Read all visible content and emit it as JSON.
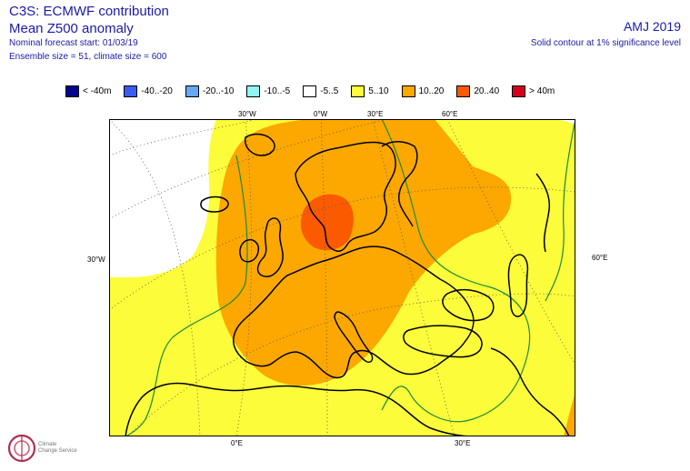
{
  "header": {
    "title": "C3S: ECMWF contribution",
    "subtitle": "Mean Z500 anomaly",
    "forecast_start": "Nominal forecast start: 01/03/19",
    "ensemble": "Ensemble size = 51, climate size = 600",
    "season": "AMJ 2019",
    "significance": "Solid contour at 1% significance level"
  },
  "legend": [
    {
      "label": "< -40m",
      "color": "#05058c"
    },
    {
      "label": "-40..-20",
      "color": "#3b5bf0"
    },
    {
      "label": "-20..-10",
      "color": "#66a8f2"
    },
    {
      "label": "-10..-5",
      "color": "#8ff5f5"
    },
    {
      "label": "-5..5",
      "color": "#ffffff"
    },
    {
      "label": "5..10",
      "color": "#fcfc3a"
    },
    {
      "label": "10..20",
      "color": "#fca800"
    },
    {
      "label": "20..40",
      "color": "#fc5a00"
    },
    {
      "label": "> 40m",
      "color": "#d4001e"
    }
  ],
  "map_ticks": {
    "top": [
      "30°W",
      "0°W",
      "30°E",
      "60°E"
    ],
    "left": "30°W",
    "right": "60°E",
    "bottom": [
      "0°E",
      "30°E"
    ]
  },
  "logo": {
    "icon": "climate-change-service-logo-icon",
    "text_line1": "Climate",
    "text_line2": "Change Service"
  }
}
